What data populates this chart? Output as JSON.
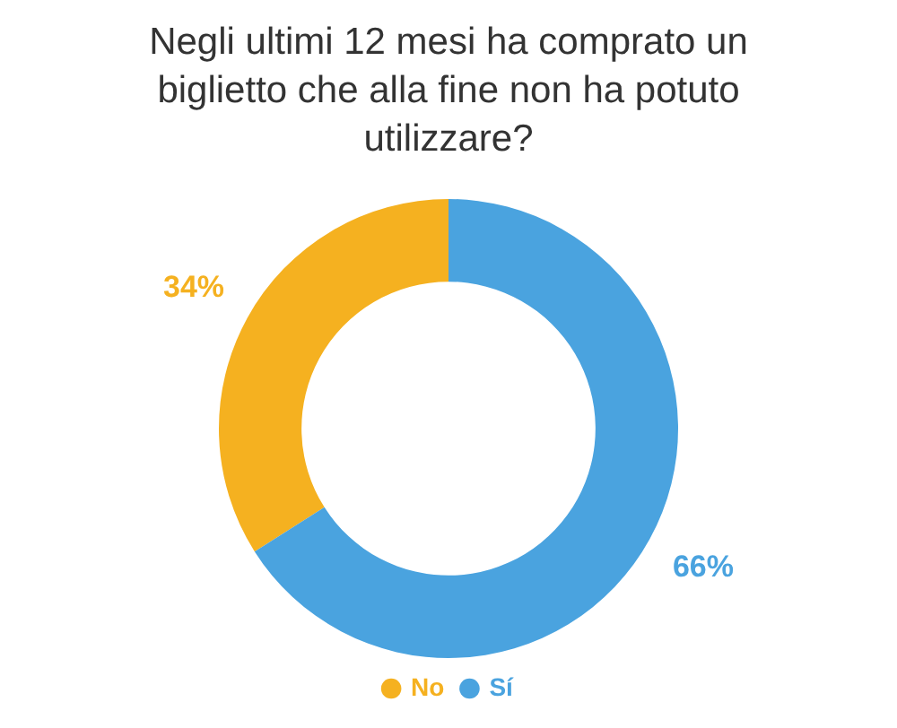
{
  "chart_data": {
    "type": "donut",
    "title": "Negli ultimi 12 mesi ha comprato un biglietto che alla fine non ha potuto utilizzare?",
    "categories": [
      "No",
      "Sí"
    ],
    "values": [
      34,
      66
    ],
    "colors": [
      "#f5b120",
      "#4aa3df"
    ],
    "value_labels": [
      "34%",
      "66%"
    ],
    "legend": "bottom"
  }
}
